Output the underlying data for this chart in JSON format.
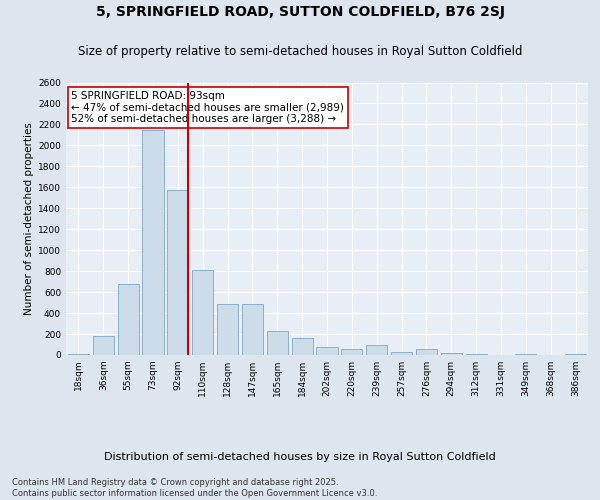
{
  "title": "5, SPRINGFIELD ROAD, SUTTON COLDFIELD, B76 2SJ",
  "subtitle": "Size of property relative to semi-detached houses in Royal Sutton Coldfield",
  "xlabel": "Distribution of semi-detached houses by size in Royal Sutton Coldfield",
  "ylabel": "Number of semi-detached properties",
  "categories": [
    "18sqm",
    "36sqm",
    "55sqm",
    "73sqm",
    "92sqm",
    "110sqm",
    "128sqm",
    "147sqm",
    "165sqm",
    "184sqm",
    "202sqm",
    "220sqm",
    "239sqm",
    "257sqm",
    "276sqm",
    "294sqm",
    "312sqm",
    "331sqm",
    "349sqm",
    "368sqm",
    "386sqm"
  ],
  "values": [
    5,
    185,
    680,
    2150,
    1575,
    810,
    490,
    490,
    230,
    160,
    80,
    60,
    95,
    30,
    60,
    20,
    10,
    0,
    5,
    0,
    5
  ],
  "bar_color": "#ccdce8",
  "bar_edge_color": "#8ab0cc",
  "property_line_color": "#cc0000",
  "annotation_text": "5 SPRINGFIELD ROAD: 93sqm\n← 47% of semi-detached houses are smaller (2,989)\n52% of semi-detached houses are larger (3,288) →",
  "annotation_box_color": "#ffffff",
  "annotation_box_edge": "#cc0000",
  "ylim": [
    0,
    2600
  ],
  "yticks": [
    0,
    200,
    400,
    600,
    800,
    1000,
    1200,
    1400,
    1600,
    1800,
    2000,
    2200,
    2400,
    2600
  ],
  "background_color": "#dde6ef",
  "plot_bg_color": "#e8eef5",
  "grid_color": "#ffffff",
  "footer": "Contains HM Land Registry data © Crown copyright and database right 2025.\nContains public sector information licensed under the Open Government Licence v3.0.",
  "title_fontsize": 10,
  "subtitle_fontsize": 8.5,
  "xlabel_fontsize": 8,
  "ylabel_fontsize": 7.5,
  "tick_fontsize": 6.5,
  "annotation_fontsize": 7.5,
  "footer_fontsize": 6
}
